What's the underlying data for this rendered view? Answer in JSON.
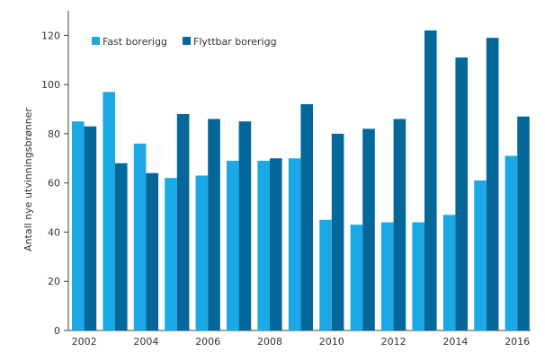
{
  "chart_data": {
    "type": "bar",
    "title": "",
    "xlabel": "",
    "ylabel": "Antall nye utvinningsbrønner",
    "categories": [
      "2002",
      "2003",
      "2004",
      "2005",
      "2006",
      "2007",
      "2008",
      "2009",
      "2010",
      "2011",
      "2012",
      "2013",
      "2014",
      "2015",
      "2016"
    ],
    "x_tick_labels": [
      "2002",
      "2004",
      "2006",
      "2008",
      "2010",
      "2012",
      "2014",
      "2016"
    ],
    "y_ticks": [
      0,
      20,
      40,
      60,
      80,
      100,
      120
    ],
    "ylim": [
      0,
      130
    ],
    "grid": false,
    "legend_position": "top-left",
    "series": [
      {
        "name": "Fast borerigg",
        "color": "#1ba9e6",
        "values": [
          85,
          97,
          76,
          62,
          63,
          69,
          69,
          70,
          45,
          43,
          44,
          44,
          47,
          61,
          71
        ]
      },
      {
        "name": "Flyttbar borerigg",
        "color": "#04679a",
        "values": [
          83,
          68,
          64,
          88,
          86,
          85,
          70,
          92,
          80,
          82,
          86,
          122,
          111,
          119,
          87
        ]
      }
    ]
  }
}
